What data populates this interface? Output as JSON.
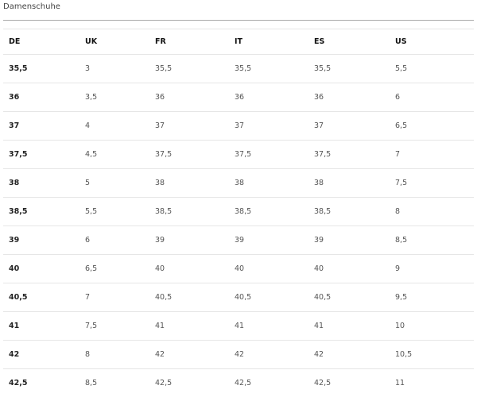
{
  "title": "Damenschuhe",
  "headers": [
    "DE",
    "UK",
    "FR",
    "IT",
    "ES",
    "US"
  ],
  "rows": [
    [
      "35,5",
      "3",
      "35,5",
      "35,5",
      "35,5",
      "5,5"
    ],
    [
      "36",
      "3,5",
      "36",
      "36",
      "36",
      "6"
    ],
    [
      "37",
      "4",
      "37",
      "37",
      "37",
      "6,5"
    ],
    [
      "37,5",
      "4,5",
      "37,5",
      "37,5",
      "37,5",
      "7"
    ],
    [
      "38",
      "5",
      "38",
      "38",
      "38",
      "7,5"
    ],
    [
      "38,5",
      "5,5",
      "38,5",
      "38,5",
      "38,5",
      "8"
    ],
    [
      "39",
      "6",
      "39",
      "39",
      "39",
      "8,5"
    ],
    [
      "40",
      "6,5",
      "40",
      "40",
      "40",
      "9"
    ],
    [
      "40,5",
      "7",
      "40,5",
      "40,5",
      "40,5",
      "9,5"
    ],
    [
      "41",
      "7,5",
      "41",
      "41",
      "41",
      "10"
    ],
    [
      "42",
      "8",
      "42",
      "42",
      "42",
      "10,5"
    ],
    [
      "42,5",
      "8,5",
      "42,5",
      "42,5",
      "42,5",
      "11"
    ]
  ]
}
